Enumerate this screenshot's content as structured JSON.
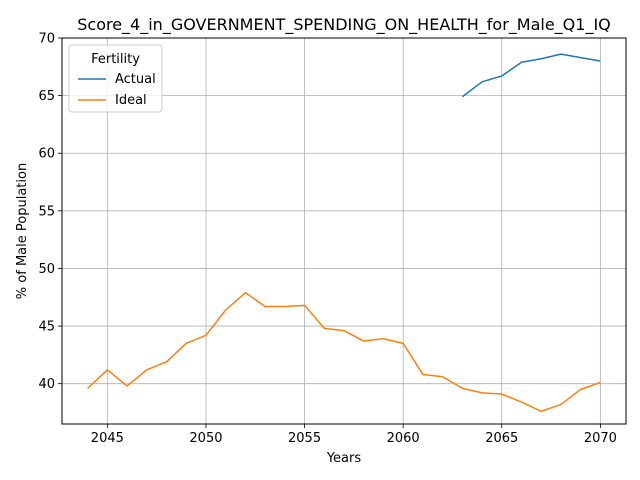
{
  "chart_data": {
    "type": "line",
    "title": "Score_4_in_GOVERNMENT_SPENDING_ON_HEALTH_for_Male_Q1_IQ",
    "xlabel": "Years",
    "ylabel": "% of Male Population",
    "xlim": [
      2042.7,
      2071.3
    ],
    "ylim": [
      36.5,
      70.0
    ],
    "xticks": [
      2045,
      2050,
      2055,
      2060,
      2065,
      2070
    ],
    "yticks": [
      40,
      45,
      50,
      55,
      60,
      65,
      70
    ],
    "grid": true,
    "legend": {
      "title": "Fertility",
      "placement": "top-left"
    },
    "series": [
      {
        "name": "Actual",
        "color": "#1f77b4",
        "x": [
          2063,
          2064,
          2065,
          2066,
          2067,
          2068,
          2069,
          2070
        ],
        "y": [
          64.9,
          66.2,
          66.7,
          67.9,
          68.2,
          68.6,
          68.3,
          68.0
        ]
      },
      {
        "name": "Ideal",
        "color": "#ff7f0e",
        "x": [
          2044,
          2045,
          2046,
          2047,
          2048,
          2049,
          2050,
          2051,
          2052,
          2053,
          2054,
          2055,
          2056,
          2057,
          2058,
          2059,
          2060,
          2061,
          2062,
          2063,
          2064,
          2065,
          2066,
          2067,
          2068,
          2069,
          2070
        ],
        "y": [
          39.6,
          41.2,
          39.8,
          41.2,
          41.9,
          43.5,
          44.2,
          46.4,
          47.9,
          46.7,
          46.7,
          46.8,
          44.8,
          44.6,
          43.7,
          43.9,
          43.5,
          40.8,
          40.6,
          39.6,
          39.2,
          39.1,
          38.4,
          37.6,
          38.2,
          39.5,
          40.1
        ]
      }
    ]
  }
}
